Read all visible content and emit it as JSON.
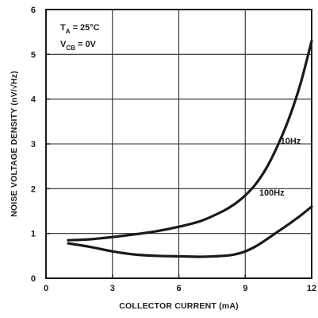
{
  "chart_data": {
    "type": "line",
    "xlabel": "COLLECTOR CURRENT (mA)",
    "ylabel": "NOISE VOLTAGE DENSITY (nV/√Hz)",
    "xlim": [
      0,
      12
    ],
    "ylim": [
      0,
      6
    ],
    "x_ticks": [
      "0",
      "3",
      "6",
      "9",
      "12"
    ],
    "y_ticks": [
      "0",
      "1",
      "2",
      "3",
      "4",
      "5",
      "6"
    ],
    "grid": true,
    "conditions": {
      "ta": "T",
      "ta_sub": "A",
      "ta_value": " = 25°C",
      "vcb": "V",
      "vcb_sub": "CB",
      "vcb_value": " = 0V"
    },
    "series": [
      {
        "name": "10Hz",
        "x": [
          1.0,
          2.0,
          3.0,
          4.0,
          5.0,
          6.0,
          7.0,
          8.0,
          8.5,
          9.0,
          9.5,
          10.0,
          10.5,
          11.0,
          11.5,
          12.0
        ],
        "y": [
          0.85,
          0.87,
          0.92,
          0.98,
          1.05,
          1.15,
          1.28,
          1.5,
          1.65,
          1.85,
          2.12,
          2.5,
          3.0,
          3.6,
          4.35,
          5.3
        ]
      },
      {
        "name": "100Hz",
        "x": [
          1.0,
          2.0,
          3.0,
          4.0,
          5.0,
          6.0,
          7.0,
          8.0,
          8.5,
          9.0,
          9.5,
          10.0,
          10.5,
          11.0,
          11.5,
          12.0
        ],
        "y": [
          0.78,
          0.7,
          0.6,
          0.53,
          0.5,
          0.49,
          0.48,
          0.5,
          0.53,
          0.6,
          0.72,
          0.88,
          1.05,
          1.22,
          1.4,
          1.6
        ]
      }
    ]
  }
}
